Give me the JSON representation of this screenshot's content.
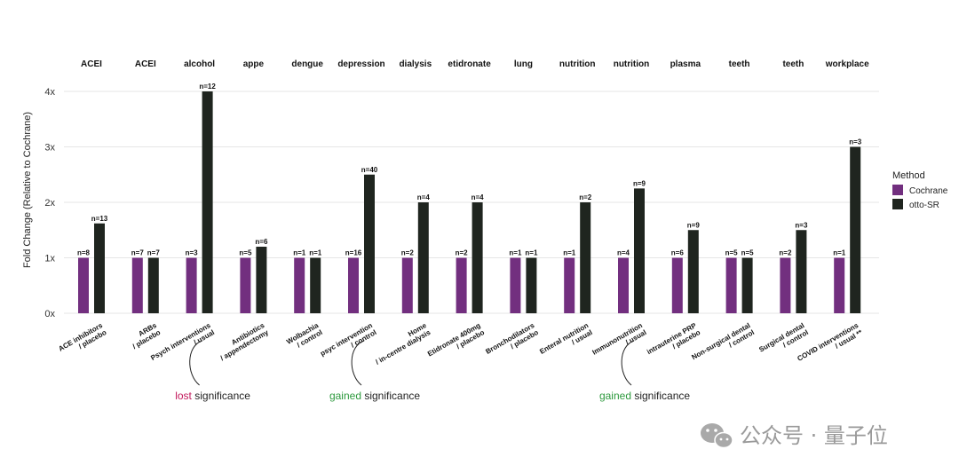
{
  "chart_data": {
    "type": "bar",
    "ylabel": "Fold Change (Relative to Cochrane)",
    "ylim": [
      0,
      4
    ],
    "yticks": [
      "0x",
      "1x",
      "2x",
      "3x",
      "4x"
    ],
    "grid": true,
    "legend": {
      "title": "Method",
      "placement": "right",
      "items": [
        {
          "name": "Cochrane",
          "color": "#722f7f"
        },
        {
          "name": "otto-SR",
          "color": "#1f251f"
        }
      ]
    },
    "facets": [
      {
        "header": "ACEI",
        "header_color": "#111111",
        "category": [
          "ACE inhibitors",
          "/ placebo"
        ],
        "cochrane": 1.0,
        "otto": 1.62,
        "n_cochrane": "n=8",
        "n_otto": "n=13"
      },
      {
        "header": "ACEI",
        "header_color": "#111111",
        "category": [
          "ARBs",
          "/ placebo"
        ],
        "cochrane": 1.0,
        "otto": 1.0,
        "n_cochrane": "n=7",
        "n_otto": "n=7"
      },
      {
        "header": "alcohol",
        "header_color": "#c2185b",
        "category": [
          "Psych interventions",
          "/ usual"
        ],
        "cochrane": 1.0,
        "otto": 4.0,
        "n_cochrane": "n=3",
        "n_otto": "n=12"
      },
      {
        "header": "appe",
        "header_color": "#111111",
        "category": [
          "Antibiotics",
          "/ appendectomy"
        ],
        "cochrane": 1.0,
        "otto": 1.2,
        "n_cochrane": "n=5",
        "n_otto": "n=6"
      },
      {
        "header": "dengue",
        "header_color": "#111111",
        "category": [
          "Wolbachia",
          "/ control"
        ],
        "cochrane": 1.0,
        "otto": 1.0,
        "n_cochrane": "n=1",
        "n_otto": "n=1"
      },
      {
        "header": "depression",
        "header_color": "#2e9a3e",
        "category": [
          "psyc intervention",
          "/ control"
        ],
        "cochrane": 1.0,
        "otto": 2.5,
        "n_cochrane": "n=16",
        "n_otto": "n=40"
      },
      {
        "header": "dialysis",
        "header_color": "#111111",
        "category": [
          "Home",
          "/ in-centre dialysis"
        ],
        "cochrane": 1.0,
        "otto": 2.0,
        "n_cochrane": "n=2",
        "n_otto": "n=4"
      },
      {
        "header": "etidronate",
        "header_color": "#111111",
        "category": [
          "Etidronate 400mg",
          "/ placebo"
        ],
        "cochrane": 1.0,
        "otto": 2.0,
        "n_cochrane": "n=2",
        "n_otto": "n=4"
      },
      {
        "header": "lung",
        "header_color": "#111111",
        "category": [
          "Bronchodilators",
          "/ placebo"
        ],
        "cochrane": 1.0,
        "otto": 1.0,
        "n_cochrane": "n=1",
        "n_otto": "n=1"
      },
      {
        "header": "nutrition",
        "header_color": "#111111",
        "category": [
          "Enteral nutrition",
          "/ usual"
        ],
        "cochrane": 1.0,
        "otto": 2.0,
        "n_cochrane": "n=1",
        "n_otto": "n=2"
      },
      {
        "header": "nutrition",
        "header_color": "#2e9a3e",
        "category": [
          "Immunonutrition",
          "/ usual"
        ],
        "cochrane": 1.0,
        "otto": 2.25,
        "n_cochrane": "n=4",
        "n_otto": "n=9"
      },
      {
        "header": "plasma",
        "header_color": "#111111",
        "category": [
          "intrauterine PRP",
          "/ placebo"
        ],
        "cochrane": 1.0,
        "otto": 1.5,
        "n_cochrane": "n=6",
        "n_otto": "n=9"
      },
      {
        "header": "teeth",
        "header_color": "#111111",
        "category": [
          "Non-surgical dental",
          "/ control"
        ],
        "cochrane": 1.0,
        "otto": 1.0,
        "n_cochrane": "n=5",
        "n_otto": "n=5"
      },
      {
        "header": "teeth",
        "header_color": "#111111",
        "category": [
          "Surgical dental",
          "/ control"
        ],
        "cochrane": 1.0,
        "otto": 1.5,
        "n_cochrane": "n=2",
        "n_otto": "n=3"
      },
      {
        "header": "workplace",
        "header_color": "#111111",
        "category": [
          "COVID interventions",
          "/ usual **"
        ],
        "cochrane": 1.0,
        "otto": 3.0,
        "n_cochrane": "n=1",
        "n_otto": "n=3"
      }
    ],
    "annotations": [
      {
        "facet": 2,
        "colored": "lost",
        "rest": " significance",
        "color": "#c2185b"
      },
      {
        "facet": 5,
        "colored": "gained",
        "rest": " significance",
        "color": "#2e9a3e"
      },
      {
        "facet": 10,
        "colored": "gained",
        "rest": " significance",
        "color": "#2e9a3e"
      }
    ]
  },
  "watermark": {
    "icon": "wechat-icon",
    "text": "公众号 · 量子位"
  }
}
